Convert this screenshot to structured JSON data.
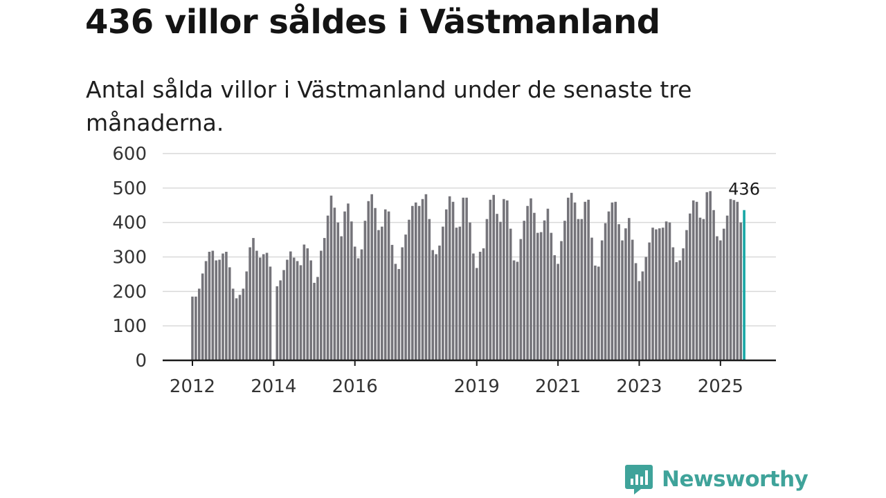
{
  "header": {
    "title": "436 villor såldes i Västmanland",
    "subtitle": "Antal sålda villor i Västmanland under de senaste tre månaderna."
  },
  "brand": {
    "name": "Newsworthy",
    "color": "#3fa39a"
  },
  "colors": {
    "bar": "#75747a",
    "highlight": "#17a7a5",
    "grid": "#d9d9d9",
    "axis": "#1a1a1a"
  },
  "chart_data": {
    "type": "bar",
    "title": "Antal sålda villor i Västmanland under de senaste tre månaderna.",
    "xlabel": "",
    "ylabel": "",
    "ylim": [
      0,
      600
    ],
    "yticks": [
      "0",
      "100",
      "200",
      "300",
      "400",
      "500",
      "600"
    ],
    "grid": true,
    "legend": "none",
    "start": "2012-01",
    "xtick_labels": [
      {
        "label": "2012",
        "index": 0
      },
      {
        "label": "2014",
        "index": 24
      },
      {
        "label": "2016",
        "index": 48
      },
      {
        "label": "2019",
        "index": 84
      },
      {
        "label": "2021",
        "index": 108
      },
      {
        "label": "2023",
        "index": 132
      },
      {
        "label": "2025",
        "index": 156
      }
    ],
    "highlight": {
      "index": 163,
      "label": "436"
    },
    "values": [
      185,
      185,
      208,
      252,
      288,
      315,
      318,
      290,
      292,
      310,
      315,
      270,
      208,
      180,
      190,
      208,
      258,
      328,
      355,
      318,
      298,
      308,
      312,
      272,
      0,
      215,
      232,
      262,
      292,
      316,
      298,
      288,
      276,
      336,
      325,
      290,
      225,
      242,
      318,
      355,
      420,
      478,
      443,
      400,
      360,
      432,
      455,
      403,
      330,
      296,
      322,
      405,
      462,
      482,
      442,
      378,
      388,
      438,
      432,
      335,
      280,
      265,
      328,
      365,
      408,
      448,
      458,
      448,
      468,
      482,
      410,
      320,
      308,
      333,
      388,
      438,
      476,
      460,
      385,
      388,
      472,
      472,
      400,
      310,
      268,
      315,
      325,
      410,
      466,
      480,
      425,
      402,
      468,
      464,
      382,
      290,
      286,
      352,
      405,
      448,
      470,
      428,
      370,
      372,
      406,
      440,
      370,
      305,
      280,
      346,
      405,
      472,
      486,
      458,
      410,
      410,
      460,
      466,
      356,
      275,
      272,
      348,
      398,
      432,
      458,
      460,
      395,
      348,
      383,
      413,
      350,
      282,
      230,
      258,
      300,
      342,
      385,
      380,
      383,
      385,
      403,
      400,
      328,
      285,
      290,
      325,
      378,
      426,
      464,
      460,
      414,
      410,
      488,
      491,
      436,
      360,
      348,
      382,
      420,
      468,
      465,
      460,
      400,
      436
    ]
  }
}
